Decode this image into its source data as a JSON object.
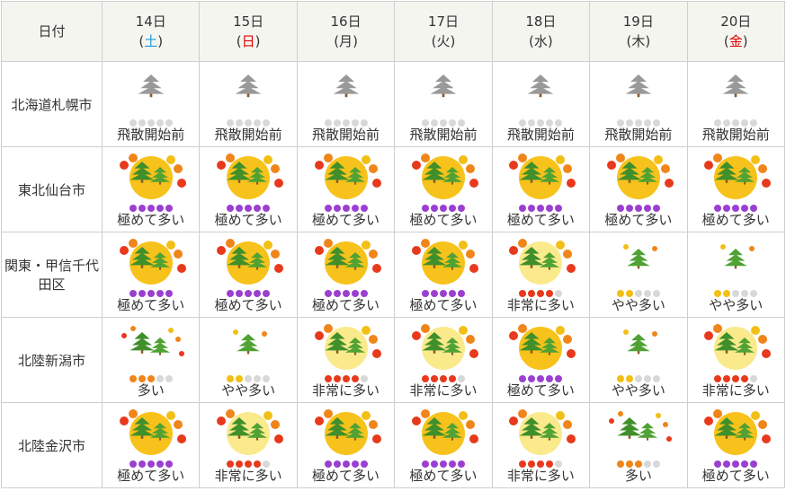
{
  "header": {
    "label": "日付",
    "paren": [
      "(",
      ")"
    ],
    "days": [
      {
        "date": "14日",
        "weekday": "土",
        "color": "#1a9bd7"
      },
      {
        "date": "15日",
        "weekday": "日",
        "color": "#e00000"
      },
      {
        "date": "16日",
        "weekday": "月",
        "color": "#333333"
      },
      {
        "date": "17日",
        "weekday": "火",
        "color": "#333333"
      },
      {
        "date": "18日",
        "weekday": "水",
        "color": "#333333"
      },
      {
        "date": "19日",
        "weekday": "木",
        "color": "#333333"
      },
      {
        "date": "20日",
        "weekday": "金",
        "color": "#e00000"
      }
    ]
  },
  "rows": [
    {
      "region": "北海道",
      "city": "札幌市",
      "cells": [
        {
          "text": "飛散開始前",
          "level": 0
        },
        {
          "text": "飛散開始前",
          "level": 0
        },
        {
          "text": "飛散開始前",
          "level": 0
        },
        {
          "text": "飛散開始前",
          "level": 0
        },
        {
          "text": "飛散開始前",
          "level": 0
        },
        {
          "text": "飛散開始前",
          "level": 0
        },
        {
          "text": "飛散開始前",
          "level": 0
        }
      ]
    },
    {
      "region": "東北",
      "city": "仙台市",
      "cells": [
        {
          "text": "極めて多い",
          "level": 5
        },
        {
          "text": "極めて多い",
          "level": 5
        },
        {
          "text": "極めて多い",
          "level": 5
        },
        {
          "text": "極めて多い",
          "level": 5
        },
        {
          "text": "極めて多い",
          "level": 5
        },
        {
          "text": "極めて多い",
          "level": 5
        },
        {
          "text": "極めて多い",
          "level": 5
        }
      ]
    },
    {
      "region": "関東・甲信",
      "city": "千代田区",
      "cells": [
        {
          "text": "極めて多い",
          "level": 5
        },
        {
          "text": "極めて多い",
          "level": 5
        },
        {
          "text": "極めて多い",
          "level": 5
        },
        {
          "text": "極めて多い",
          "level": 5
        },
        {
          "text": "非常に多い",
          "level": 4
        },
        {
          "text": "やや多い",
          "level": 2
        },
        {
          "text": "やや多い",
          "level": 2
        }
      ]
    },
    {
      "region": "北陸",
      "city": "新潟市",
      "cells": [
        {
          "text": "多い",
          "level": 3
        },
        {
          "text": "やや多い",
          "level": 2
        },
        {
          "text": "非常に多い",
          "level": 4
        },
        {
          "text": "非常に多い",
          "level": 4
        },
        {
          "text": "極めて多い",
          "level": 5
        },
        {
          "text": "やや多い",
          "level": 2
        },
        {
          "text": "非常に多い",
          "level": 4
        }
      ]
    },
    {
      "region": "北陸",
      "city": "金沢市",
      "cells": [
        {
          "text": "極めて多い",
          "level": 5
        },
        {
          "text": "非常に多い",
          "level": 4
        },
        {
          "text": "極めて多い",
          "level": 5
        },
        {
          "text": "極めて多い",
          "level": 5
        },
        {
          "text": "非常に多い",
          "level": 4
        },
        {
          "text": "多い",
          "level": 3
        },
        {
          "text": "極めて多い",
          "level": 5
        }
      ]
    }
  ]
}
